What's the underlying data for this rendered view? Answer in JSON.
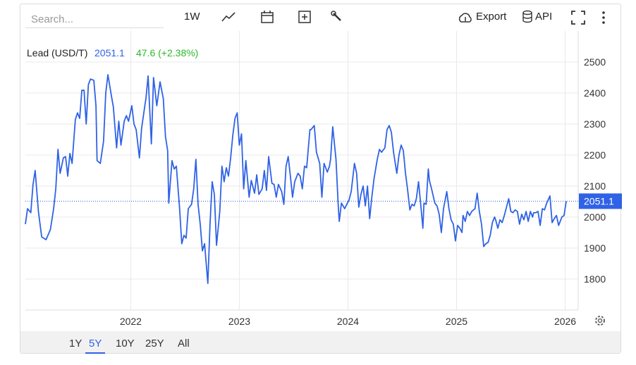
{
  "toolbar": {
    "search_placeholder": "Search...",
    "interval": "1W",
    "export": "Export",
    "api": "API"
  },
  "chart_data": {
    "type": "line",
    "title": "Lead (USD/T)",
    "last_value": 2051.1,
    "change": "47.6 (+2.38%)",
    "color": "#2f62e6",
    "change_color": "#2eb82e",
    "x": [
      2021.03,
      2021.05,
      2021.08,
      2021.1,
      2021.12,
      2021.15,
      2021.18,
      2021.22,
      2021.26,
      2021.29,
      2021.31,
      2021.33,
      2021.35,
      2021.38,
      2021.4,
      2021.42,
      2021.44,
      2021.46,
      2021.49,
      2021.51,
      2021.53,
      2021.55,
      2021.57,
      2021.59,
      2021.61,
      2021.63,
      2021.66,
      2021.68,
      2021.69,
      2021.72,
      2021.75,
      2021.77,
      2021.79,
      2021.82,
      2021.84,
      2021.87,
      2021.89,
      2021.91,
      2021.94,
      2021.96,
      2021.98,
      2022.01,
      2022.03,
      2022.05,
      2022.08,
      2022.1,
      2022.13,
      2022.14,
      2022.16,
      2022.19,
      2022.21,
      2022.24,
      2022.27,
      2022.3,
      2022.32,
      2022.34,
      2022.35,
      2022.38,
      2022.4,
      2022.42,
      2022.45,
      2022.47,
      2022.49,
      2022.51,
      2022.53,
      2022.56,
      2022.58,
      2022.6,
      2022.62,
      2022.64,
      2022.66,
      2022.68,
      2022.71,
      2022.73,
      2022.75,
      2022.77,
      2022.79,
      2022.82,
      2022.84,
      2022.86,
      2022.88,
      2022.9,
      2022.92,
      2022.94,
      2022.96,
      2022.98,
      2023.0,
      2023.02,
      2023.04,
      2023.06,
      2023.09,
      2023.11,
      2023.14,
      2023.16,
      2023.18,
      2023.21,
      2023.23,
      2023.25,
      2023.27,
      2023.3,
      2023.32,
      2023.34,
      2023.36,
      2023.39,
      2023.41,
      2023.43,
      2023.45,
      2023.47,
      2023.49,
      2023.51,
      2023.54,
      2023.56,
      2023.58,
      2023.6,
      2023.62,
      2023.65,
      2023.66,
      2023.69,
      2023.71,
      2023.74,
      2023.76,
      2023.78,
      2023.81,
      2023.83,
      2023.84,
      2023.86,
      2023.89,
      2023.91,
      2023.92,
      2023.94,
      2023.97,
      2023.99,
      2024.01,
      2024.03,
      2024.06,
      2024.08,
      2024.1,
      2024.12,
      2024.14,
      2024.16,
      2024.18,
      2024.2,
      2024.22,
      2024.24,
      2024.27,
      2024.29,
      2024.31,
      2024.32,
      2024.34,
      2024.36,
      2024.38,
      2024.4,
      2024.42,
      2024.45,
      2024.47,
      2024.49,
      2024.51,
      2024.53,
      2024.55,
      2024.57,
      2024.59,
      2024.61,
      2024.63,
      2024.65,
      2024.67,
      2024.69,
      2024.7,
      2024.72,
      2024.74,
      2024.75,
      2024.77,
      2024.8,
      2024.82,
      2024.84,
      2024.86,
      2024.88,
      2024.91,
      2024.93,
      2024.95,
      2024.97,
      2024.99,
      2025.01,
      2025.03,
      2025.05,
      2025.06,
      2025.08,
      2025.1,
      2025.12,
      2025.14,
      2025.17,
      2025.19,
      2025.21,
      2025.23,
      2025.25,
      2025.27,
      2025.29,
      2025.31,
      2025.33,
      2025.35,
      2025.36,
      2025.38,
      2025.4,
      2025.42,
      2025.44,
      2025.46,
      2025.48,
      2025.5,
      2025.52,
      2025.54,
      2025.56,
      2025.58,
      2025.6,
      2025.62,
      2025.64,
      2025.66,
      2025.68,
      2025.7,
      2025.71,
      2025.73,
      2025.75,
      2025.77,
      2025.79,
      2025.81,
      2025.83,
      2025.86,
      2025.88,
      2025.9,
      2025.92,
      2025.94,
      2025.96,
      2025.97,
      2025.99,
      2026.01
    ],
    "values": [
      1977,
      2027,
      2014,
      2104,
      2150,
      2018,
      1936,
      1927,
      1959,
      2027,
      2091,
      2218,
      2141,
      2191,
      2195,
      2132,
      2205,
      2173,
      2314,
      2336,
      2318,
      2409,
      2409,
      2300,
      2427,
      2445,
      2441,
      2359,
      2182,
      2173,
      2245,
      2400,
      2459,
      2395,
      2355,
      2223,
      2309,
      2232,
      2309,
      2327,
      2309,
      2359,
      2300,
      2282,
      2191,
      2286,
      2359,
      2382,
      2455,
      2236,
      2450,
      2359,
      2436,
      2382,
      2259,
      2214,
      2045,
      2182,
      2155,
      2164,
      2027,
      1914,
      1941,
      1932,
      2027,
      2041,
      2091,
      2186,
      2041,
      1977,
      1891,
      1914,
      1786,
      1977,
      2114,
      2073,
      1909,
      2018,
      2164,
      2114,
      2159,
      2132,
      2191,
      2264,
      2318,
      2336,
      2232,
      2268,
      2091,
      2182,
      2064,
      2118,
      2077,
      2136,
      2073,
      2091,
      2150,
      2086,
      2195,
      2109,
      2105,
      2064,
      2105,
      2082,
      2041,
      2164,
      2195,
      2132,
      2064,
      2114,
      2141,
      2132,
      2091,
      2164,
      2159,
      2282,
      2282,
      2295,
      2209,
      2173,
      2064,
      2173,
      2145,
      2164,
      2186,
      2291,
      2186,
      2041,
      1986,
      2045,
      2027,
      2041,
      2055,
      2082,
      2173,
      2141,
      2032,
      2073,
      2100,
      2036,
      2100,
      1995,
      2064,
      2123,
      2186,
      2218,
      2209,
      2214,
      2223,
      2282,
      2295,
      2273,
      2209,
      2141,
      2200,
      2232,
      2214,
      2141,
      2086,
      2023,
      2041,
      2036,
      2059,
      2114,
      2041,
      1964,
      2045,
      2041,
      2155,
      2118,
      2091,
      2045,
      2036,
      2009,
      1950,
      2027,
      2082,
      2027,
      1991,
      1977,
      1923,
      1973,
      1964,
      1950,
      2005,
      1986,
      2018,
      2005,
      2018,
      2027,
      2077,
      2018,
      1977,
      1905,
      1914,
      1918,
      1941,
      1982,
      2000,
      1991,
      1964,
      1991,
      1982,
      2005,
      2032,
      2059,
      2018,
      2014,
      2023,
      2018,
      1977,
      2009,
      1991,
      2018,
      1986,
      2018,
      2000,
      2014,
      2014,
      2018,
      1973,
      2027,
      2023,
      2045,
      2068,
      1982,
      1995,
      2005,
      1973,
      1991,
      2000,
      2005,
      2051.1
    ],
    "xlim": [
      2021.03,
      2026.12
    ],
    "xticks": [
      2022,
      2023,
      2024,
      2025,
      2026
    ],
    "ylim": [
      1700,
      2600
    ],
    "yticks": [
      1800,
      1900,
      2000,
      2100,
      2200,
      2300,
      2400,
      2500
    ],
    "grid": true
  },
  "ranges": [
    "1Y",
    "5Y",
    "10Y",
    "25Y",
    "All"
  ],
  "selected_range": "5Y"
}
